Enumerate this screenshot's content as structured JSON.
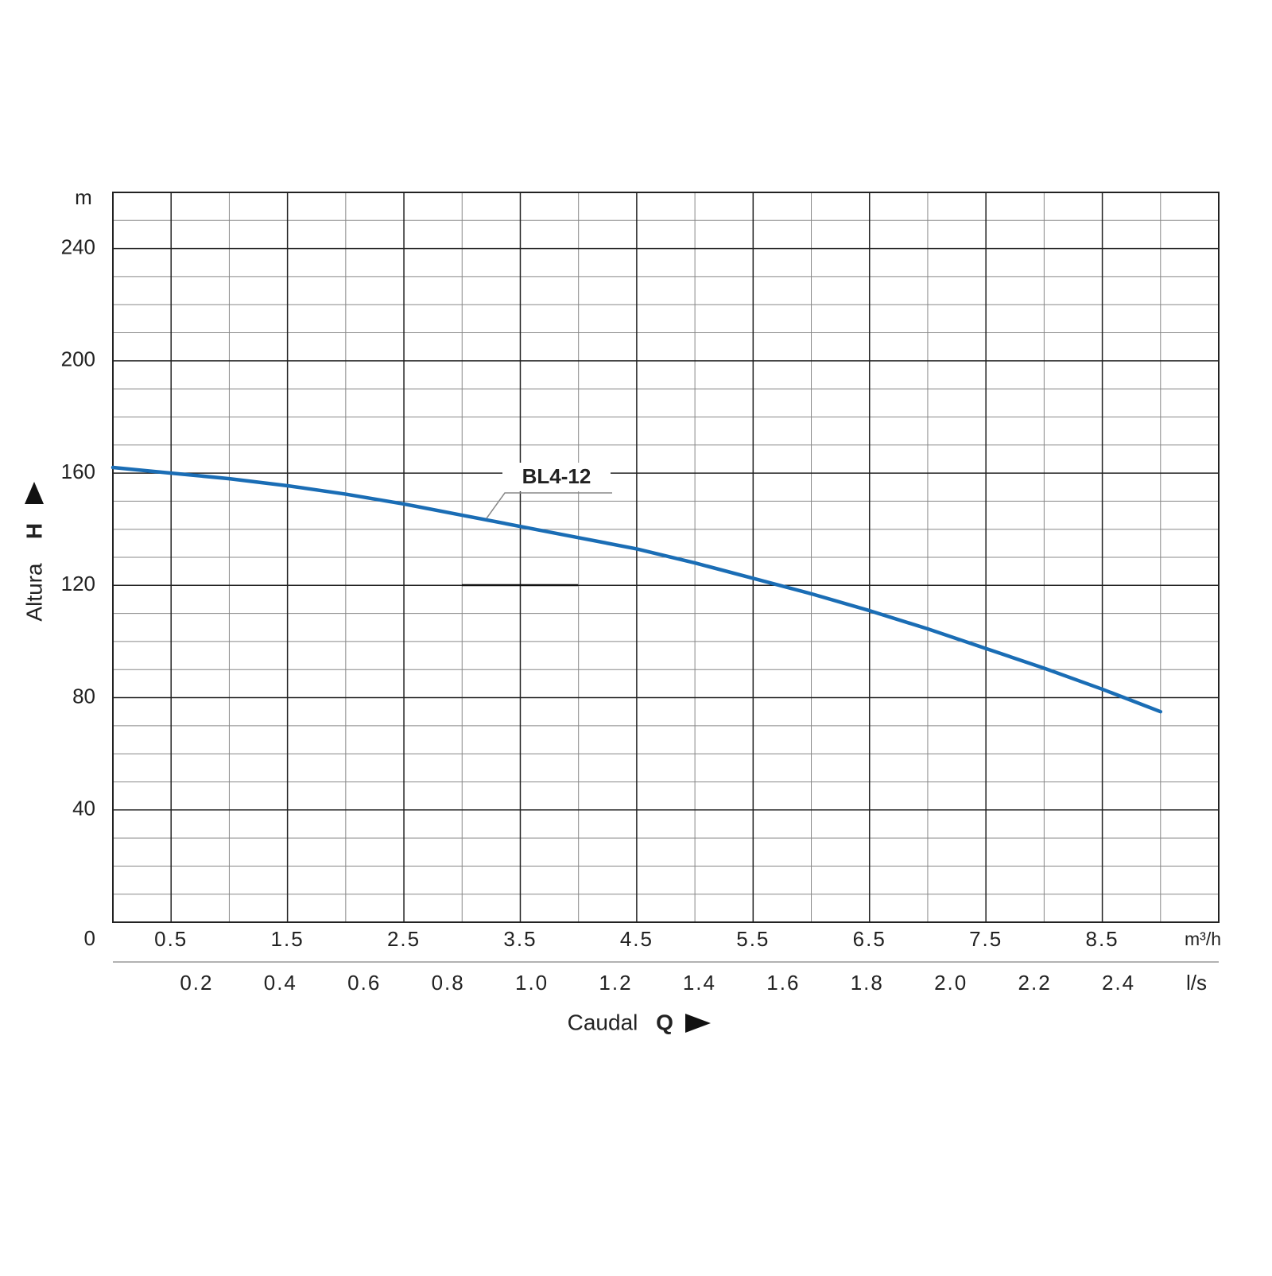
{
  "chart_data": {
    "type": "line",
    "ylabel": "Altura",
    "ylabel_symbol": "H",
    "yunit": "m",
    "xlabel": "Caudal",
    "xlabel_symbol": "Q",
    "xunit": "m³/h",
    "x2unit": "l/s",
    "annotation": "BL4-12",
    "x": [
      0,
      0.5,
      1,
      1.5,
      2,
      2.5,
      3,
      3.5,
      4,
      4.5,
      5,
      5.5,
      6,
      6.5,
      7,
      7.5,
      8,
      8.5,
      9
    ],
    "series": [
      {
        "name": "BL4-12",
        "color": "#1a6db5",
        "values": [
          162,
          160,
          158,
          155.5,
          152.5,
          149,
          145,
          141,
          137,
          133,
          128,
          122.5,
          117,
          111,
          104.5,
          97.5,
          90.5,
          83,
          75
        ]
      }
    ],
    "xlim": [
      0,
      9.5
    ],
    "xticks": [
      0.5,
      1.5,
      2.5,
      3.5,
      4.5,
      5.5,
      6.5,
      7.5,
      8.5
    ],
    "xminorticks": [
      1,
      2,
      3,
      4,
      5,
      6,
      7,
      8,
      9
    ],
    "x2lim": [
      0,
      2.639
    ],
    "x2ticks": [
      0.2,
      0.4,
      0.6,
      0.8,
      {
        "value": 1.0,
        "label": "1.0"
      },
      1.2,
      1.4,
      1.6,
      1.8,
      {
        "value": 2.0,
        "label": "2.0"
      },
      2.2,
      2.4
    ],
    "ylim": [
      0,
      260
    ],
    "yticks": [
      0,
      40,
      80,
      120,
      160,
      200,
      240
    ],
    "yminorticks": [
      10,
      20,
      30,
      50,
      60,
      70,
      90,
      100,
      110,
      130,
      140,
      150,
      170,
      180,
      190,
      210,
      220,
      230,
      250
    ],
    "grid": true
  }
}
